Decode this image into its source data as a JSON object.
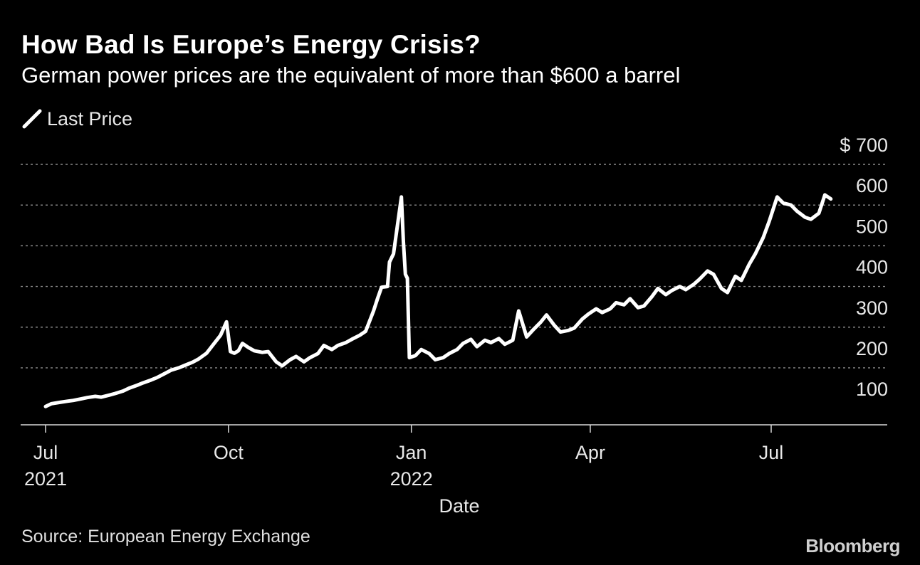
{
  "header": {
    "title": "How Bad Is Europe’s Energy Crisis?",
    "subtitle": "German power prices are the equivalent of more than $600 a barrel"
  },
  "legend": {
    "label": "Last Price",
    "icon": "line-swatch-icon"
  },
  "footer": {
    "source": "Source: European Energy Exchange",
    "brand": "Bloomberg"
  },
  "colors": {
    "background": "#000000",
    "line": "#ffffff",
    "grid": "#8a8a8a",
    "text": "#e8e8e8"
  },
  "chart_data": {
    "type": "line",
    "title": "How Bad Is Europe’s Energy Crisis?",
    "subtitle": "German power prices are the equivalent of more than $600 a barrel",
    "xlabel": "Date",
    "ylabel": "",
    "ylim": [
      60,
      700
    ],
    "yticks": [
      {
        "value": 700,
        "label": "$ 700"
      },
      {
        "value": 600,
        "label": "600"
      },
      {
        "value": 500,
        "label": "500"
      },
      {
        "value": 400,
        "label": "400"
      },
      {
        "value": 300,
        "label": "300"
      },
      {
        "value": 200,
        "label": "200"
      },
      {
        "value": 100,
        "label": "100"
      }
    ],
    "xlim": [
      "2021-06-29",
      "2022-09-15"
    ],
    "xticks": [
      {
        "date": "2021-07-01",
        "label": "Jul",
        "label2": "2021"
      },
      {
        "date": "2021-10-01",
        "label": "Oct",
        "label2": ""
      },
      {
        "date": "2022-01-01",
        "label": "Jan",
        "label2": "2022"
      },
      {
        "date": "2022-04-01",
        "label": "Apr",
        "label2": ""
      },
      {
        "date": "2022-07-01",
        "label": "Jul",
        "label2": ""
      }
    ],
    "grid": true,
    "legend_position": "top-left",
    "series": [
      {
        "name": "Last Price",
        "color": "#ffffff",
        "x": [
          "2021-07-01",
          "2021-07-04",
          "2021-07-08",
          "2021-07-12",
          "2021-07-15",
          "2021-07-19",
          "2021-07-22",
          "2021-07-26",
          "2021-07-29",
          "2021-08-02",
          "2021-08-05",
          "2021-08-09",
          "2021-08-12",
          "2021-08-16",
          "2021-08-19",
          "2021-08-23",
          "2021-08-26",
          "2021-08-30",
          "2021-09-02",
          "2021-09-06",
          "2021-09-09",
          "2021-09-13",
          "2021-09-16",
          "2021-09-20",
          "2021-09-23",
          "2021-09-27",
          "2021-09-30",
          "2021-10-02",
          "2021-10-04",
          "2021-10-06",
          "2021-10-08",
          "2021-10-11",
          "2021-10-14",
          "2021-10-18",
          "2021-10-21",
          "2021-10-25",
          "2021-10-28",
          "2021-11-01",
          "2021-11-04",
          "2021-11-08",
          "2021-11-11",
          "2021-11-15",
          "2021-11-18",
          "2021-11-22",
          "2021-11-25",
          "2021-11-29",
          "2021-12-02",
          "2021-12-06",
          "2021-12-09",
          "2021-12-13",
          "2021-12-15",
          "2021-12-17",
          "2021-12-20",
          "2021-12-21",
          "2021-12-22",
          "2021-12-23",
          "2021-12-27",
          "2021-12-28",
          "2021-12-29",
          "2021-12-30",
          "2021-12-31",
          "2022-01-03",
          "2022-01-06",
          "2022-01-10",
          "2022-01-13",
          "2022-01-17",
          "2022-01-20",
          "2022-01-24",
          "2022-01-27",
          "2022-01-31",
          "2022-02-03",
          "2022-02-07",
          "2022-02-10",
          "2022-02-14",
          "2022-02-17",
          "2022-02-21",
          "2022-02-24",
          "2022-02-28",
          "2022-03-03",
          "2022-03-07",
          "2022-03-10",
          "2022-03-14",
          "2022-03-17",
          "2022-03-21",
          "2022-03-24",
          "2022-03-28",
          "2022-03-31",
          "2022-04-04",
          "2022-04-07",
          "2022-04-11",
          "2022-04-14",
          "2022-04-18",
          "2022-04-21",
          "2022-04-25",
          "2022-04-28",
          "2022-05-02",
          "2022-05-05",
          "2022-05-09",
          "2022-05-12",
          "2022-05-16",
          "2022-05-19",
          "2022-05-23",
          "2022-05-26",
          "2022-05-30",
          "2022-06-02",
          "2022-06-06",
          "2022-06-09",
          "2022-06-13",
          "2022-06-16",
          "2022-06-20",
          "2022-06-23",
          "2022-06-27",
          "2022-06-30",
          "2022-07-04",
          "2022-07-07",
          "2022-07-11",
          "2022-07-14",
          "2022-07-18",
          "2022-07-21",
          "2022-07-25",
          "2022-07-28",
          "2022-07-31"
        ],
        "values": [
          105,
          112,
          115,
          118,
          120,
          124,
          127,
          130,
          128,
          133,
          137,
          143,
          150,
          157,
          163,
          170,
          176,
          186,
          194,
          200,
          206,
          214,
          222,
          236,
          255,
          280,
          313,
          240,
          236,
          242,
          260,
          250,
          242,
          238,
          240,
          215,
          205,
          220,
          228,
          215,
          225,
          235,
          255,
          245,
          255,
          262,
          270,
          280,
          290,
          340,
          370,
          398,
          400,
          460,
          470,
          480,
          620,
          510,
          430,
          420,
          225,
          230,
          245,
          235,
          220,
          225,
          235,
          245,
          260,
          270,
          252,
          268,
          262,
          272,
          258,
          268,
          340,
          276,
          292,
          312,
          330,
          304,
          288,
          292,
          298,
          320,
          332,
          345,
          336,
          345,
          360,
          355,
          370,
          348,
          352,
          375,
          395,
          380,
          390,
          400,
          392,
          405,
          418,
          438,
          430,
          395,
          385,
          425,
          415,
          455,
          480,
          520,
          560,
          620,
          605,
          600,
          585,
          570,
          565,
          580,
          625,
          615
        ]
      }
    ]
  }
}
